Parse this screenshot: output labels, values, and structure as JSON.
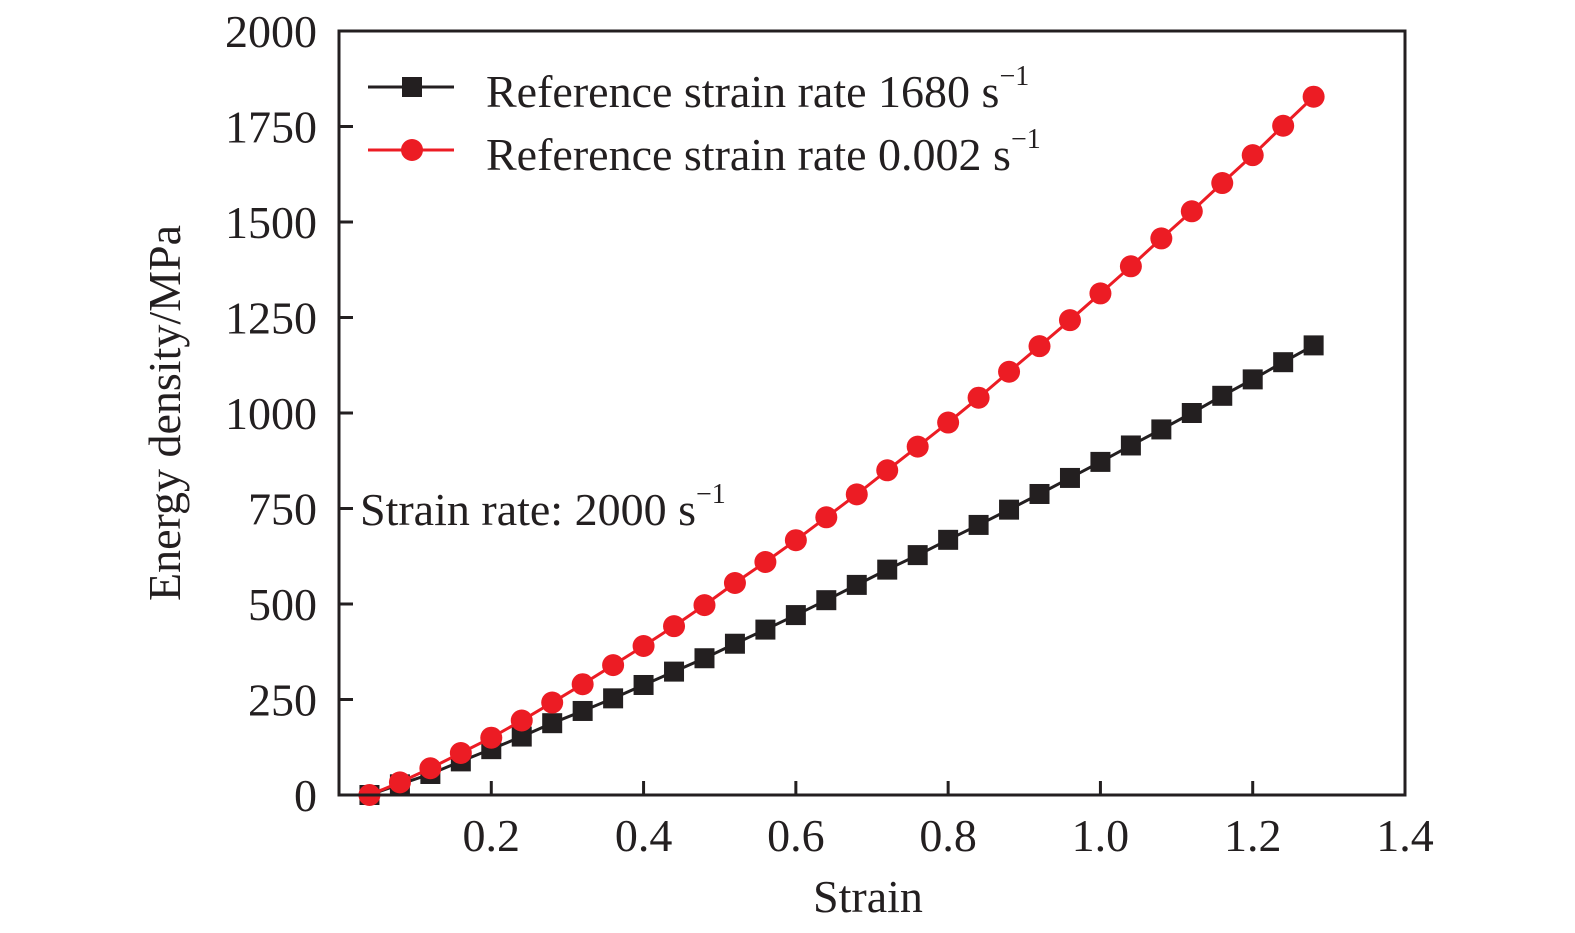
{
  "chart_data": {
    "type": "line",
    "title": "",
    "xlabel": "Strain",
    "ylabel": "Energy density/MPa",
    "xlim": [
      0,
      1.4
    ],
    "ylim": [
      0,
      2000
    ],
    "xticks": [
      0.2,
      0.4,
      0.6,
      0.8,
      1.0,
      1.2,
      1.4
    ],
    "xtick_labels": [
      "0.2",
      "0.4",
      "0.6",
      "0.8",
      "1.0",
      "1.2",
      "1.4"
    ],
    "yticks": [
      0,
      250,
      500,
      750,
      1000,
      1250,
      1500,
      1750,
      2000
    ],
    "ytick_labels": [
      "0",
      "250",
      "500",
      "750",
      "1000",
      "1250",
      "1500",
      "1750",
      "2000"
    ],
    "grid": false,
    "legend_position": "top-left",
    "annotation": {
      "text": "Strain rate: 2000 s",
      "sup": "−1",
      "x": 0.03,
      "y": 750
    },
    "x": [
      0.04,
      0.08,
      0.12,
      0.16,
      0.2,
      0.24,
      0.28,
      0.32,
      0.36,
      0.4,
      0.44,
      0.48,
      0.52,
      0.56,
      0.6,
      0.64,
      0.68,
      0.72,
      0.76,
      0.8,
      0.84,
      0.88,
      0.92,
      0.96,
      1.0,
      1.04,
      1.08,
      1.12,
      1.16,
      1.2,
      1.24,
      1.28
    ],
    "series": [
      {
        "name": "Reference strain rate 1680 s",
        "sup": "−1",
        "color": "#231f20",
        "marker": "square",
        "values": [
          0,
          28,
          55,
          88,
          120,
          153,
          188,
          220,
          253,
          288,
          323,
          358,
          396,
          433,
          471,
          510,
          550,
          590,
          628,
          668,
          707,
          747,
          788,
          830,
          872,
          915,
          957,
          1000,
          1045,
          1088,
          1133,
          1177
        ]
      },
      {
        "name": "Reference strain rate 0.002 s",
        "sup": "−1",
        "color": "#ec1c24",
        "marker": "circle",
        "values": [
          0,
          33,
          70,
          110,
          150,
          195,
          242,
          290,
          340,
          390,
          442,
          497,
          555,
          610,
          667,
          727,
          787,
          850,
          912,
          975,
          1040,
          1108,
          1175,
          1243,
          1313,
          1384,
          1457,
          1528,
          1602,
          1675,
          1752,
          1828
        ]
      }
    ]
  }
}
